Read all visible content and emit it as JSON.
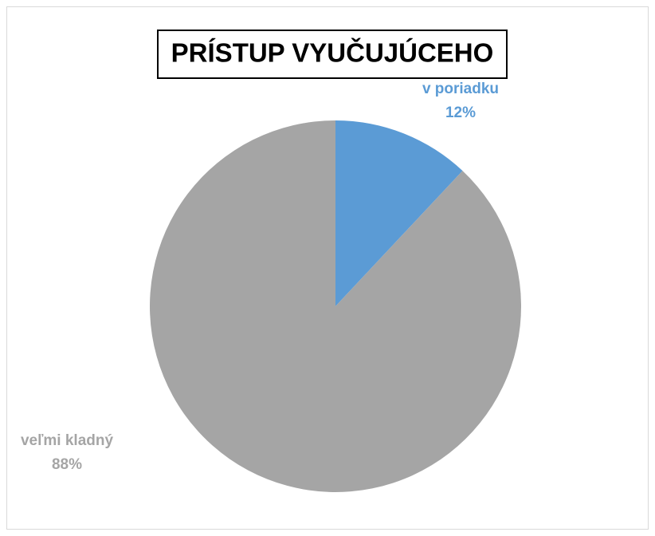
{
  "chart_data": {
    "type": "pie",
    "title": "PRÍSTUP VYUČUJÚCEHO",
    "categories": [
      "v poriadku",
      "veľmi kladný"
    ],
    "values": [
      12,
      88
    ],
    "value_labels": [
      "12%",
      "88%"
    ],
    "colors": [
      "#5b9bd5",
      "#a5a5a5"
    ]
  }
}
